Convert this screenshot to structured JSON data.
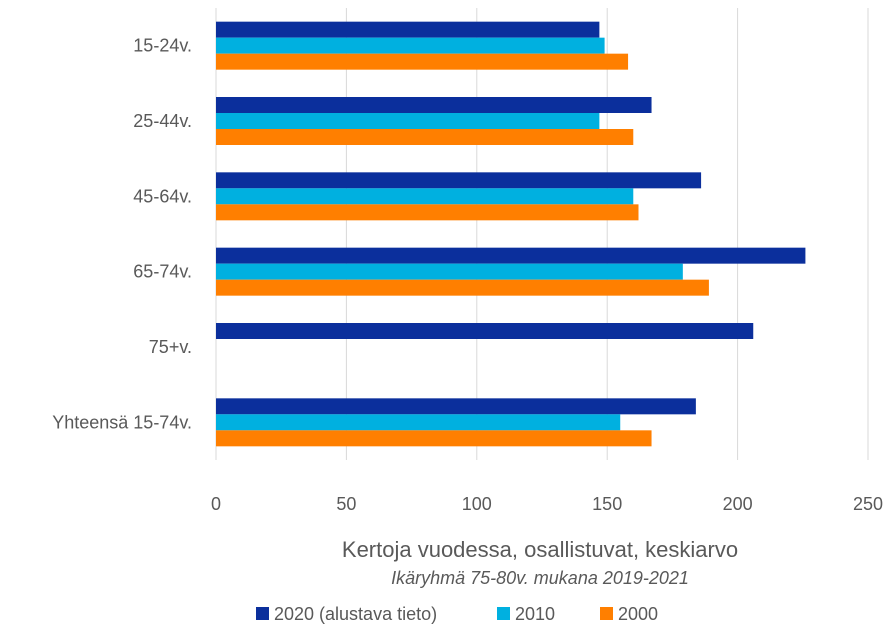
{
  "chart_data": {
    "type": "bar",
    "orientation": "horizontal",
    "categories": [
      "15-24v.",
      "25-44v.",
      "45-64v.",
      "65-74v.",
      "75+v.",
      "Yhteensä 15-74v."
    ],
    "series": [
      {
        "name": "2020 (alustava tieto)",
        "color": "#0b2f9c",
        "values": [
          147,
          167,
          186,
          226,
          206,
          184
        ]
      },
      {
        "name": "2010",
        "color": "#00b0e0",
        "values": [
          149,
          147,
          160,
          179,
          null,
          155
        ]
      },
      {
        "name": "2000",
        "color": "#ff7f00",
        "values": [
          158,
          160,
          162,
          189,
          null,
          167
        ]
      }
    ],
    "xlim": [
      0,
      250
    ],
    "xticks": [
      "0",
      "50",
      "100",
      "150",
      "200",
      "250"
    ],
    "xlabel": "Kertoja vuodessa, osallistuvat, keskiarvo",
    "subtitle": "Ikäryhmä 75-80v. mukana 2019-2021",
    "grid": true,
    "legend_position": "bottom"
  }
}
